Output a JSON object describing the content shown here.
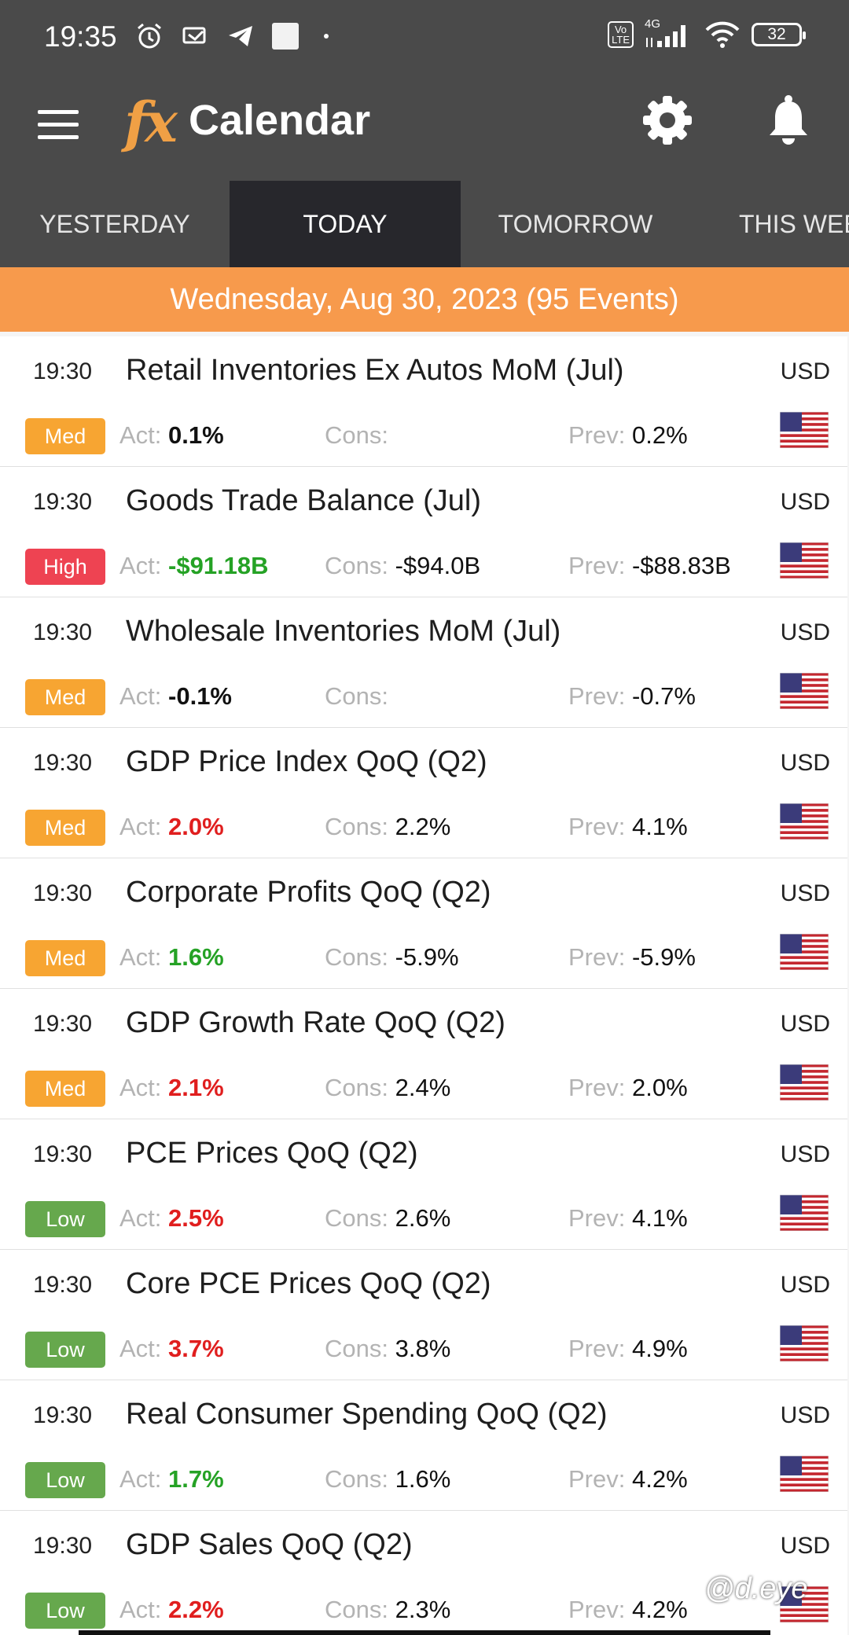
{
  "status_bar": {
    "time": "19:35",
    "network": "4G",
    "battery": "32"
  },
  "app_bar": {
    "logo": "fx",
    "title": "Calendar"
  },
  "tabs": [
    {
      "label": "YESTERDAY"
    },
    {
      "label": "TODAY"
    },
    {
      "label": "TOMORROW"
    },
    {
      "label": "THIS WEE"
    }
  ],
  "date_banner": "Wednesday, Aug 30, 2023 (95 Events)",
  "labels": {
    "act": "Act: ",
    "cons": "Cons: ",
    "prev": "Prev: "
  },
  "events": [
    {
      "time": "19:30",
      "title": "Retail Inventories Ex Autos MoM (Jul)",
      "currency": "USD",
      "importance": "Med",
      "act": "0.1%",
      "cons": "",
      "prev": "0.2%"
    },
    {
      "time": "19:30",
      "title": "Goods Trade Balance (Jul)",
      "currency": "USD",
      "importance": "High",
      "act": "-$91.18B",
      "cons": "-$94.0B",
      "prev": "-$88.83B"
    },
    {
      "time": "19:30",
      "title": "Wholesale Inventories MoM (Jul)",
      "currency": "USD",
      "importance": "Med",
      "act": "-0.1%",
      "cons": "",
      "prev": "-0.7%"
    },
    {
      "time": "19:30",
      "title": "GDP Price Index QoQ (Q2)",
      "currency": "USD",
      "importance": "Med",
      "act": "2.0%",
      "cons": "2.2%",
      "prev": "4.1%"
    },
    {
      "time": "19:30",
      "title": "Corporate Profits QoQ (Q2)",
      "currency": "USD",
      "importance": "Med",
      "act": "1.6%",
      "cons": "-5.9%",
      "prev": "-5.9%"
    },
    {
      "time": "19:30",
      "title": "GDP Growth Rate QoQ (Q2)",
      "currency": "USD",
      "importance": "Med",
      "act": "2.1%",
      "cons": "2.4%",
      "prev": "2.0%"
    },
    {
      "time": "19:30",
      "title": "PCE Prices QoQ (Q2)",
      "currency": "USD",
      "importance": "Low",
      "act": "2.5%",
      "cons": "2.6%",
      "prev": "4.1%"
    },
    {
      "time": "19:30",
      "title": "Core PCE Prices QoQ (Q2)",
      "currency": "USD",
      "importance": "Low",
      "act": "3.7%",
      "cons": "3.8%",
      "prev": "4.9%"
    },
    {
      "time": "19:30",
      "title": "Real Consumer Spending QoQ (Q2)",
      "currency": "USD",
      "importance": "Low",
      "act": "1.7%",
      "cons": "1.6%",
      "prev": "4.2%"
    },
    {
      "time": "19:30",
      "title": "GDP Sales QoQ (Q2)",
      "currency": "USD",
      "importance": "Low",
      "act": "2.2%",
      "cons": "2.3%",
      "prev": "4.2%"
    }
  ],
  "watermark": "@d.eye",
  "colors": {
    "bar": "#4a4a4a",
    "active_tab": "#27272c",
    "banner": "#f79a4c",
    "med": "#f7a532",
    "high": "#ee4352",
    "low": "#66a84d",
    "beat": "#25a225",
    "miss": "#e01e1e"
  }
}
